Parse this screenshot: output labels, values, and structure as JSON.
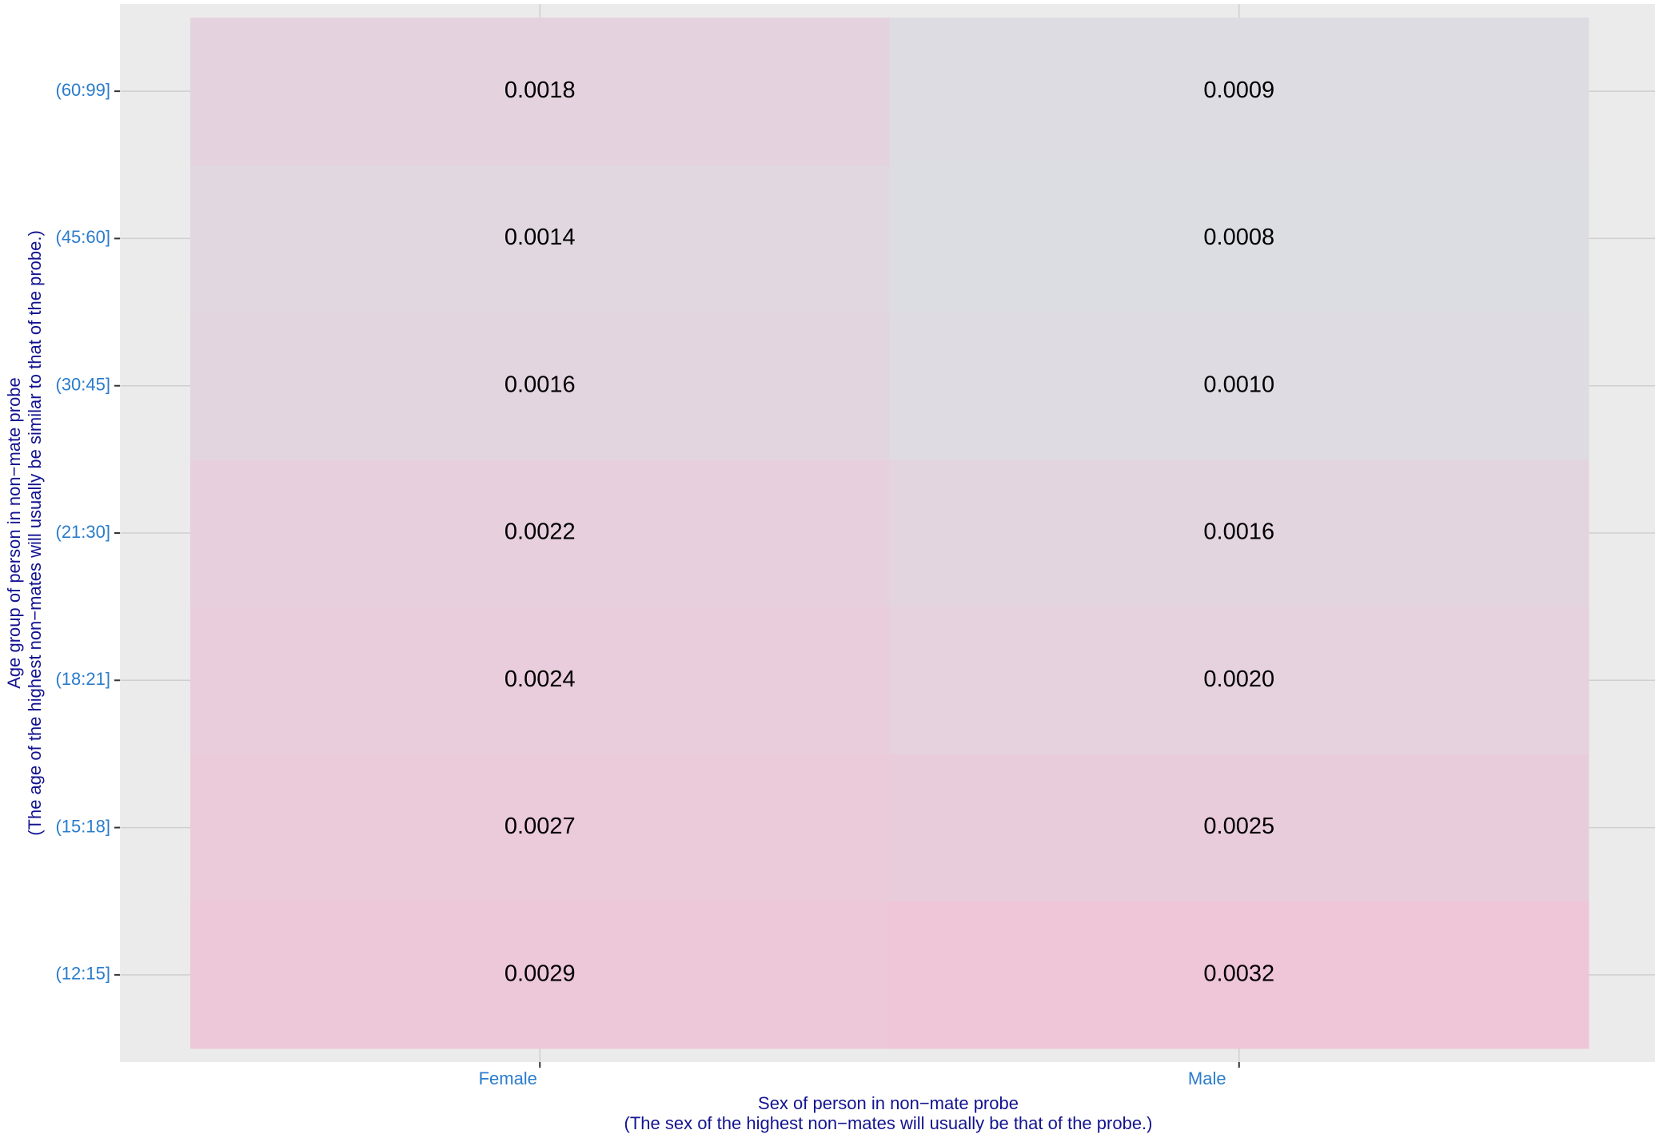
{
  "chart_data": {
    "type": "heatmap",
    "x_label": [
      "Sex of person in non−mate probe",
      "(The sex of the highest non−mates will usually be that of the probe.)"
    ],
    "y_label": [
      "Age group of person in non−mate probe",
      "(The age of the highest non−mates will usually be similar to that of the probe.)"
    ],
    "x_categories": [
      "Female",
      "Male"
    ],
    "y_categories": [
      "(12:15]",
      "(15:18]",
      "(18:21]",
      "(21:30]",
      "(30:45]",
      "(45:60]",
      "(60:99]"
    ],
    "values": [
      [
        0.0029,
        0.0032
      ],
      [
        0.0027,
        0.0025
      ],
      [
        0.0024,
        0.002
      ],
      [
        0.0022,
        0.0016
      ],
      [
        0.0016,
        0.001
      ],
      [
        0.0014,
        0.0008
      ],
      [
        0.0018,
        0.0009
      ]
    ],
    "value_labels": [
      [
        "0.0029",
        "0.0032"
      ],
      [
        "0.0027",
        "0.0025"
      ],
      [
        "0.0024",
        "0.0020"
      ],
      [
        "0.0022",
        "0.0016"
      ],
      [
        "0.0016",
        "0.0010"
      ],
      [
        "0.0014",
        "0.0008"
      ],
      [
        "0.0018",
        "0.0009"
      ]
    ],
    "color_low": "#dcdde3",
    "color_high": "#efc5d8",
    "grid": true
  }
}
